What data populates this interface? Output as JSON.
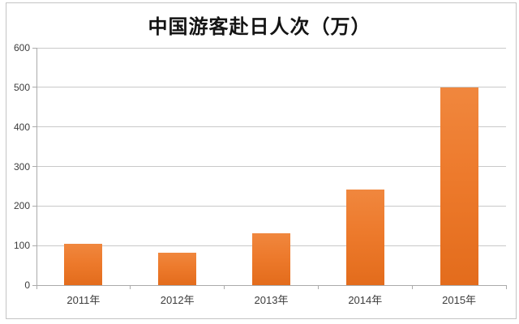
{
  "chart_data": {
    "type": "bar",
    "title": "中国游客赴日人次（万）",
    "categories": [
      "2011年",
      "2012年",
      "2013年",
      "2014年",
      "2015年"
    ],
    "values": [
      104,
      82,
      131,
      241,
      500
    ],
    "xlabel": "",
    "ylabel": "",
    "ylim": [
      0,
      600
    ],
    "ytick_step": 100,
    "ytick_labels": [
      "0",
      "100",
      "200",
      "300",
      "400",
      "500",
      "600"
    ],
    "grid": "horizontal",
    "legend_position": "none",
    "colors": {
      "bar": "#ed7a2c",
      "bar_gradient_top": "#f0873e",
      "bar_gradient_bottom": "#e36c1c",
      "gridline": "#c9c9c9",
      "axis": "#ababab",
      "labels": "#3c3c3c",
      "title": "#141414",
      "frame_border": "#c4c4c4",
      "background": "#ffffff"
    }
  }
}
